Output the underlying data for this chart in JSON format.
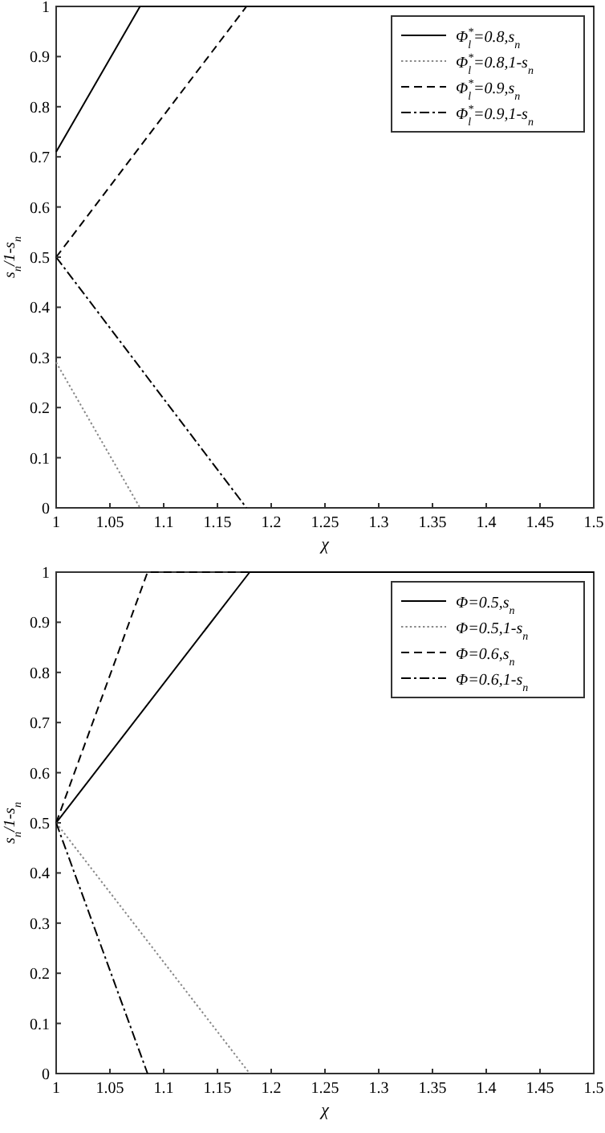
{
  "chart_data": [
    {
      "type": "line",
      "xlabel": "χ",
      "ylabel": "s$_{n}$/1-s$_{n}$",
      "xlim": [
        1,
        1.5
      ],
      "ylim": [
        0,
        1
      ],
      "xticks": [
        1,
        1.05,
        1.1,
        1.15,
        1.2,
        1.25,
        1.3,
        1.35,
        1.4,
        1.45,
        1.5
      ],
      "yticks": [
        0,
        0.1,
        0.2,
        0.3,
        0.4,
        0.5,
        0.6,
        0.7,
        0.8,
        0.9,
        1
      ],
      "grid": false,
      "legend": "top right",
      "marker": "none",
      "series": [
        {
          "name": "Φ$_{l}$$^{*}$=0.8,s$_{n}$",
          "color": "#000000",
          "line_style": "solid",
          "x": [
            1,
            1.078,
            1.5
          ],
          "values": [
            0.71,
            1,
            1
          ]
        },
        {
          "name": "Φ$_{l}$$^{*}$=0.8,1-s$_{n}$",
          "color": "#888888",
          "line_style": "dotted",
          "x": [
            1,
            1.078
          ],
          "values": [
            0.29,
            0
          ]
        },
        {
          "name": "Φ$_{l}$$^{*}$=0.9,s$_{n}$",
          "color": "#000000",
          "line_style": "dashed",
          "x": [
            1,
            1.177,
            1.5
          ],
          "values": [
            0.5,
            1,
            1
          ]
        },
        {
          "name": "Φ$_{l}$$^{*}$=0.9,1-s$_{n}$",
          "color": "#000000",
          "line_style": "dashdot",
          "x": [
            1,
            1.177
          ],
          "values": [
            0.5,
            0
          ]
        }
      ]
    },
    {
      "type": "line",
      "xlabel": "χ",
      "ylabel": "s$_{n}$/1-s$_{n}$",
      "xlim": [
        1,
        1.5
      ],
      "ylim": [
        0,
        1
      ],
      "xticks": [
        1,
        1.05,
        1.1,
        1.15,
        1.2,
        1.25,
        1.3,
        1.35,
        1.4,
        1.45,
        1.5
      ],
      "yticks": [
        0,
        0.1,
        0.2,
        0.3,
        0.4,
        0.5,
        0.6,
        0.7,
        0.8,
        0.9,
        1
      ],
      "grid": false,
      "legend": "top right",
      "marker": "none",
      "series": [
        {
          "name": "Φ=0.5,s$_{n}$",
          "color": "#000000",
          "line_style": "solid",
          "x": [
            1,
            1.18,
            1.5
          ],
          "values": [
            0.5,
            1,
            1
          ]
        },
        {
          "name": "Φ=0.5,1-s$_{n}$",
          "color": "#888888",
          "line_style": "dotted",
          "x": [
            1,
            1.18
          ],
          "values": [
            0.5,
            0
          ]
        },
        {
          "name": "Φ=0.6,s$_{n}$",
          "color": "#000000",
          "line_style": "dashed",
          "x": [
            1,
            1.085,
            1.5
          ],
          "values": [
            0.5,
            1,
            1
          ]
        },
        {
          "name": "Φ=0.6,1-s$_{n}$",
          "color": "#000000",
          "line_style": "dashdot",
          "x": [
            1,
            1.085
          ],
          "values": [
            0.5,
            0
          ]
        }
      ]
    }
  ]
}
